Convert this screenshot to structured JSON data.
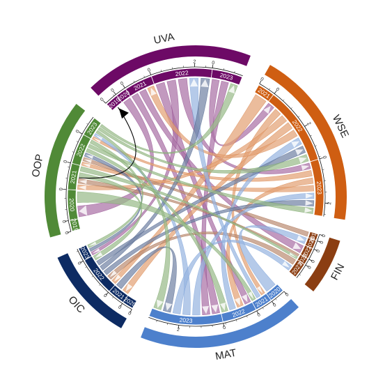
{
  "chart_data": {
    "type": "chord",
    "title": "",
    "groups": [
      {
        "name": "UVA",
        "color": "#6d0a66",
        "sectors": [
          {
            "label": "2019",
            "value": 0.6
          },
          {
            "label": "2020",
            "value": 0.5
          },
          {
            "label": "2021",
            "value": 1.3
          },
          {
            "label": "2022",
            "value": 2.8
          },
          {
            "label": "2023",
            "value": 1.4
          }
        ]
      },
      {
        "name": "WSE",
        "color": "#cf5e12",
        "sectors": [
          {
            "label": "2021",
            "value": 0.8
          },
          {
            "label": "2022",
            "value": 3.6
          },
          {
            "label": "2023",
            "value": 2.6
          }
        ]
      },
      {
        "name": "FIN",
        "color": "#8b3e12",
        "sectors": [
          {
            "label": "2019",
            "value": 0.3
          },
          {
            "label": "2020",
            "value": 0.4
          },
          {
            "label": "2021",
            "value": 0.5
          },
          {
            "label": "2022",
            "value": 0.3
          },
          {
            "label": "2023",
            "value": 0.7
          }
        ]
      },
      {
        "name": "MAT",
        "color": "#4d80cc",
        "sectors": [
          {
            "label": "2020",
            "value": 0.7
          },
          {
            "label": "2021",
            "value": 0.8
          },
          {
            "label": "2022",
            "value": 1.6
          },
          {
            "label": "2023",
            "value": 3.4
          }
        ]
      },
      {
        "name": "OIC",
        "color": "#0d2b63",
        "sectors": [
          {
            "label": "2020",
            "value": 0.5
          },
          {
            "label": "2021",
            "value": 0.8
          },
          {
            "label": "2022",
            "value": 1.8
          },
          {
            "label": "2023",
            "value": 0.6
          }
        ]
      },
      {
        "name": "OOP",
        "color": "#508a37",
        "sectors": [
          {
            "label": "2019",
            "value": 0.5
          },
          {
            "label": "2020",
            "value": 1.4
          },
          {
            "label": "2021",
            "value": 1.2
          },
          {
            "label": "2022",
            "value": 1.4
          },
          {
            "label": "2023",
            "value": 0.9
          }
        ]
      }
    ],
    "tick_labels": [
      "0",
      "2",
      "4"
    ],
    "links": [
      {
        "source": [
          "UVA",
          "2023"
        ],
        "target": [
          "WSE",
          "2022"
        ]
      },
      {
        "source": [
          "UVA",
          "2022"
        ],
        "target": [
          "MAT",
          "2022"
        ]
      },
      {
        "source": [
          "UVA",
          "2022"
        ],
        "target": [
          "OIC",
          "2023"
        ]
      },
      {
        "source": [
          "UVA",
          "2022"
        ],
        "target": [
          "WSE",
          "2023"
        ]
      },
      {
        "source": [
          "UVA",
          "2021"
        ],
        "target": [
          "MAT",
          "2023"
        ]
      },
      {
        "source": [
          "UVA",
          "2021"
        ],
        "target": [
          "FIN",
          "2021"
        ]
      },
      {
        "source": [
          "UVA",
          "2020"
        ],
        "target": [
          "OOP",
          "2020"
        ]
      },
      {
        "source": [
          "UVA",
          "2023"
        ],
        "target": [
          "MAT",
          "2023"
        ]
      },
      {
        "source": [
          "WSE",
          "2021"
        ],
        "target": [
          "OIC",
          "2022"
        ]
      },
      {
        "source": [
          "WSE",
          "2022"
        ],
        "target": [
          "MAT",
          "2021"
        ]
      },
      {
        "source": [
          "WSE",
          "2022"
        ],
        "target": [
          "OOP",
          "2021"
        ]
      },
      {
        "source": [
          "WSE",
          "2022"
        ],
        "target": [
          "OIC",
          "2021"
        ]
      },
      {
        "source": [
          "WSE",
          "2023"
        ],
        "target": [
          "OOP",
          "2023"
        ]
      },
      {
        "source": [
          "WSE",
          "2023"
        ],
        "target": [
          "MAT",
          "2022"
        ]
      },
      {
        "source": [
          "WSE",
          "2023"
        ],
        "target": [
          "OOP",
          "2022"
        ]
      },
      {
        "source": [
          "WSE",
          "2022"
        ],
        "target": [
          "UVA",
          "2021"
        ]
      },
      {
        "source": [
          "FIN",
          "2022"
        ],
        "target": [
          "OOP",
          "2021"
        ]
      },
      {
        "source": [
          "FIN",
          "2023"
        ],
        "target": [
          "OIC",
          "2022"
        ]
      },
      {
        "source": [
          "FIN",
          "2019"
        ],
        "target": [
          "OOP",
          "2022"
        ]
      },
      {
        "source": [
          "MAT",
          "2023"
        ],
        "target": [
          "WSE",
          "2023"
        ]
      },
      {
        "source": [
          "MAT",
          "2023"
        ],
        "target": [
          "OOP",
          "2023"
        ]
      },
      {
        "source": [
          "MAT",
          "2022"
        ],
        "target": [
          "WSE",
          "2022"
        ]
      },
      {
        "source": [
          "MAT",
          "2023"
        ],
        "target": [
          "FIN",
          "2023"
        ]
      },
      {
        "source": [
          "MAT",
          "2021"
        ],
        "target": [
          "UVA",
          "2022"
        ]
      },
      {
        "source": [
          "MAT",
          "2020"
        ],
        "target": [
          "FIN",
          "2020"
        ]
      },
      {
        "source": [
          "OIC",
          "2022"
        ],
        "target": [
          "WSE",
          "2023"
        ]
      },
      {
        "source": [
          "OIC",
          "2022"
        ],
        "target": [
          "UVA",
          "2022"
        ]
      },
      {
        "source": [
          "OIC",
          "2023"
        ],
        "target": [
          "OOP",
          "2022"
        ]
      },
      {
        "source": [
          "OIC",
          "2021"
        ],
        "target": [
          "MAT",
          "2023"
        ]
      },
      {
        "source": [
          "OIC",
          "2022"
        ],
        "target": [
          "WSE",
          "2022"
        ]
      },
      {
        "source": [
          "OOP",
          "2023"
        ],
        "target": [
          "MAT",
          "2023"
        ]
      },
      {
        "source": [
          "OOP",
          "2023"
        ],
        "target": [
          "WSE",
          "2022"
        ]
      },
      {
        "source": [
          "OOP",
          "2022"
        ],
        "target": [
          "MAT",
          "2022"
        ]
      },
      {
        "source": [
          "OOP",
          "2022"
        ],
        "target": [
          "WSE",
          "2023"
        ]
      },
      {
        "source": [
          "OOP",
          "2021"
        ],
        "target": [
          "OIC",
          "2022"
        ]
      },
      {
        "source": [
          "OOP",
          "2021"
        ],
        "target": [
          "FIN",
          "2022"
        ]
      },
      {
        "source": [
          "OOP",
          "2020"
        ],
        "target": [
          "MAT",
          "2021"
        ]
      },
      {
        "source": [
          "OOP",
          "2022"
        ],
        "target": [
          "OIC",
          "2023"
        ]
      },
      {
        "source": [
          "OOP",
          "2023"
        ],
        "target": [
          "UVA",
          "2023"
        ]
      }
    ],
    "highlight_link": {
      "source": [
        "OOP",
        "2021"
      ],
      "target": [
        "UVA",
        "2019"
      ]
    },
    "legend": "none",
    "grid": false
  }
}
